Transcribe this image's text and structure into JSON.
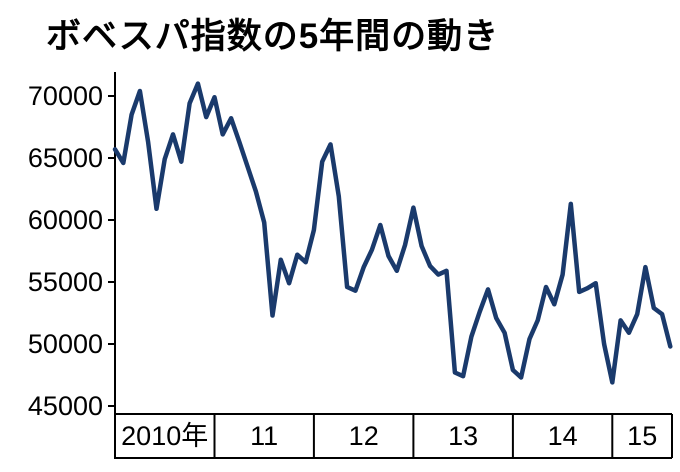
{
  "page": {
    "background": "#ffffff"
  },
  "chart_data": {
    "type": "line",
    "title": "ボベスパ指数の5年間の動き",
    "xlabel": "",
    "ylabel": "",
    "x_tick_labels": [
      "2010年",
      "11",
      "12",
      "13",
      "14",
      "15"
    ],
    "y_ticks": [
      45000,
      50000,
      55000,
      60000,
      65000,
      70000
    ],
    "ylim": [
      45000,
      72000
    ],
    "xlim": [
      2010.0,
      2015.6
    ],
    "grid": false,
    "legend": "none",
    "line_color": "#1a3a6c",
    "axis_color": "#000000",
    "series": [
      {
        "name": "ボベスパ指数",
        "x": [
          2010.0,
          2010.083,
          2010.167,
          2010.25,
          2010.333,
          2010.417,
          2010.5,
          2010.583,
          2010.667,
          2010.75,
          2010.833,
          2010.917,
          2011.0,
          2011.083,
          2011.167,
          2011.25,
          2011.333,
          2011.417,
          2011.5,
          2011.583,
          2011.667,
          2011.75,
          2011.833,
          2011.917,
          2012.0,
          2012.083,
          2012.167,
          2012.25,
          2012.333,
          2012.417,
          2012.5,
          2012.583,
          2012.667,
          2012.75,
          2012.833,
          2012.917,
          2013.0,
          2013.083,
          2013.167,
          2013.25,
          2013.333,
          2013.417,
          2013.5,
          2013.583,
          2013.667,
          2013.75,
          2013.833,
          2013.917,
          2014.0,
          2014.083,
          2014.167,
          2014.25,
          2014.333,
          2014.417,
          2014.5,
          2014.583,
          2014.667,
          2014.75,
          2014.833,
          2014.917,
          2015.0,
          2015.083,
          2015.167,
          2015.25,
          2015.333,
          2015.417,
          2015.5,
          2015.583
        ],
        "values": [
          65700,
          64600,
          68500,
          70400,
          66300,
          60900,
          64900,
          66900,
          64700,
          69400,
          71000,
          68300,
          69900,
          66900,
          68200,
          66300,
          64300,
          62300,
          59800,
          52300,
          56800,
          54900,
          57200,
          56600,
          59200,
          64700,
          66100,
          61900,
          54600,
          54300,
          56200,
          57600,
          59600,
          57100,
          55900,
          58000,
          61000,
          57900,
          56300,
          55600,
          55900,
          47700,
          47400,
          50600,
          52600,
          54400,
          52100,
          50900,
          47900,
          47300,
          50400,
          51900,
          54600,
          53200,
          55600,
          61300,
          54200,
          54500,
          54900,
          50000,
          46900,
          51900,
          50900,
          52400,
          56200,
          52900,
          52400,
          49800
        ]
      }
    ]
  }
}
